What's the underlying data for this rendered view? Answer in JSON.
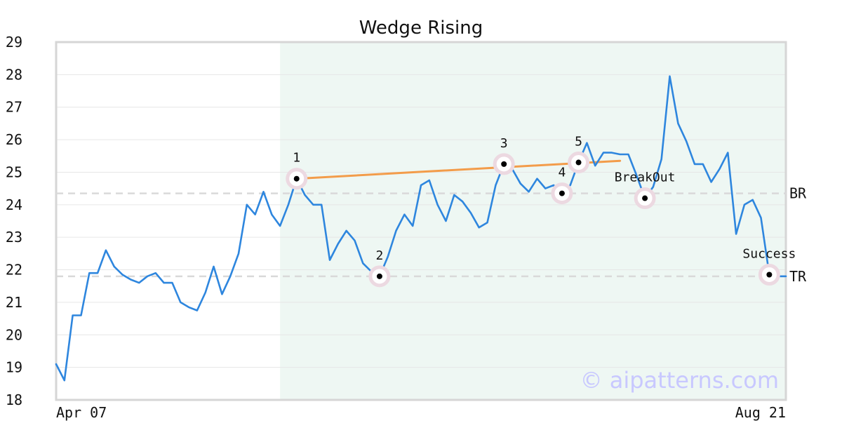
{
  "chart_data": {
    "type": "line",
    "title": "Wedge Rising",
    "xlabel": "",
    "ylabel": "",
    "ylim": [
      18,
      29
    ],
    "yticks": [
      18,
      19,
      20,
      21,
      22,
      23,
      24,
      25,
      26,
      27,
      28,
      29
    ],
    "x_tick_labels": [
      "Apr 07",
      "Aug 21"
    ],
    "grid": true,
    "watermark": "© aipatterns.com",
    "colors": {
      "price": "#2e86de",
      "trendline": "#f39c4a",
      "pattern_region": "#eef7f3",
      "marker_halo": "#ecd9e1",
      "level_line": "#d9d9d9",
      "watermark": "#c8c8ff"
    },
    "pattern_region": {
      "start_index": 27,
      "end_index": 88
    },
    "series": [
      {
        "values": [
          19.1,
          18.6,
          20.6,
          20.6,
          21.9,
          21.9,
          22.6,
          22.1,
          21.85,
          21.7,
          21.6,
          21.8,
          21.9,
          21.6,
          21.6,
          21.0,
          20.85,
          20.75,
          21.3,
          22.1,
          21.25,
          21.8,
          22.5,
          24.0,
          23.7,
          24.4,
          23.7,
          23.35,
          24.0,
          24.8,
          24.3,
          24.0,
          24.0,
          22.3,
          22.8,
          23.2,
          22.9,
          22.2,
          21.95,
          21.8,
          22.4,
          23.2,
          23.7,
          23.35,
          24.6,
          24.75,
          24.0,
          23.5,
          24.3,
          24.1,
          23.75,
          23.3,
          23.45,
          24.6,
          25.25,
          25.1,
          24.65,
          24.4,
          24.8,
          24.5,
          24.6,
          24.35,
          24.6,
          25.3,
          25.9,
          25.2,
          25.6,
          25.6,
          25.55,
          25.55,
          24.9,
          24.2,
          24.55,
          25.4,
          27.95,
          26.5,
          25.95,
          25.25,
          25.25,
          24.7,
          25.1,
          25.6,
          23.1,
          24.0,
          24.15,
          23.6,
          21.85,
          21.8,
          21.8
        ]
      }
    ],
    "trendline": {
      "from": {
        "index": 29,
        "value": 24.8
      },
      "to": {
        "index": 68,
        "value": 25.35
      }
    },
    "levels": [
      {
        "label": "BR",
        "value": 24.35
      },
      {
        "label": "TR",
        "value": 21.8
      }
    ],
    "points": [
      {
        "label": "1",
        "index": 29,
        "value": 24.8
      },
      {
        "label": "2",
        "index": 39,
        "value": 21.8
      },
      {
        "label": "3",
        "index": 54,
        "value": 25.25
      },
      {
        "label": "4",
        "index": 61,
        "value": 24.35
      },
      {
        "label": "5",
        "index": 63,
        "value": 25.3
      },
      {
        "label": "BreakOut",
        "index": 71,
        "value": 24.2
      },
      {
        "label": "Success",
        "index": 86,
        "value": 21.85
      }
    ]
  }
}
